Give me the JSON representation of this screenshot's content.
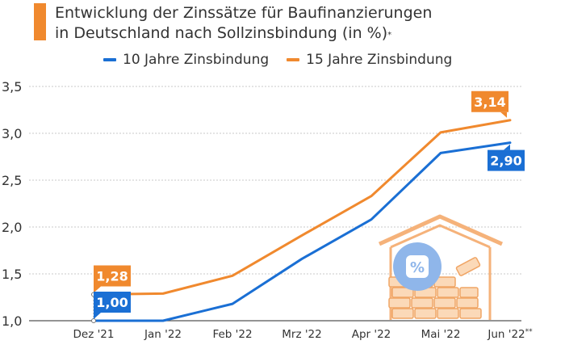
{
  "chart_data": {
    "type": "line",
    "title_line1": "Entwicklung der Zinssätze für Baufinanzierungen",
    "title_line2": "in Deutschland nach Sollzinsbindung (in %)",
    "title_sup": "*",
    "categories": [
      "Dez '21",
      "Jan '22",
      "Feb '22",
      "Mrz '22",
      "Apr '22",
      "Mai '22",
      "Jun '22"
    ],
    "last_category_sup": "**",
    "series": [
      {
        "name": "10 Jahre Zinsbindung",
        "color": "#1a6fd4",
        "values": [
          1.0,
          1.0,
          1.18,
          1.66,
          2.08,
          2.79,
          2.9
        ]
      },
      {
        "name": "15 Jahre Zinsbindung",
        "color": "#f0892e",
        "values": [
          1.28,
          1.29,
          1.48,
          1.91,
          2.33,
          3.01,
          3.14
        ]
      }
    ],
    "yticks": [
      "1,0",
      "1,5",
      "2,0",
      "2,5",
      "3,0",
      "3,5"
    ],
    "ylim": [
      1.0,
      3.5
    ],
    "grid": true,
    "labels": [
      {
        "series": 1,
        "index": 0,
        "text": "1,28"
      },
      {
        "series": 0,
        "index": 0,
        "text": "1,00"
      },
      {
        "series": 1,
        "index": 6,
        "text": "3,14"
      },
      {
        "series": 0,
        "index": 6,
        "text": "2,90"
      }
    ],
    "icon": "house-with-brick-wall-and-percent-icon"
  }
}
